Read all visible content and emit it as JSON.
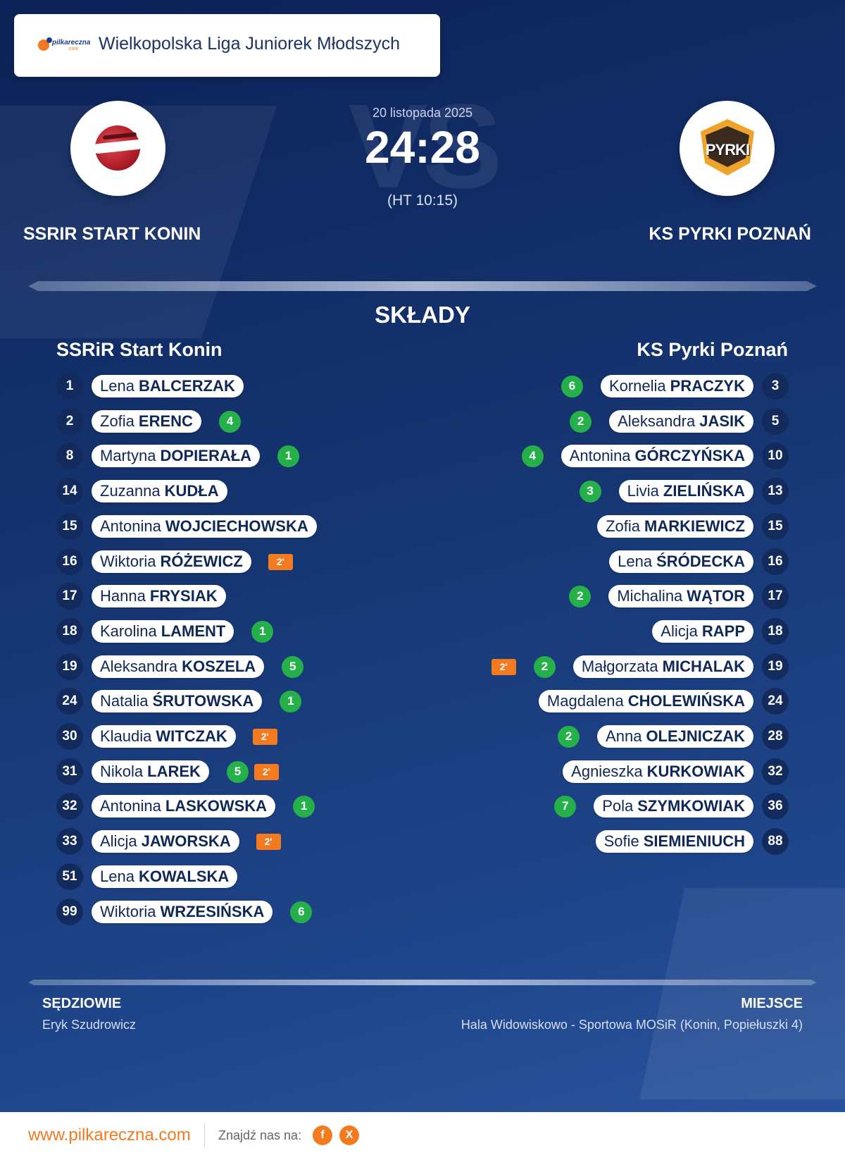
{
  "header": {
    "league": "Wielkopolska Liga Juniorek Młodszych",
    "logo_text": "pilkareczna",
    "logo_subtext": ".com"
  },
  "match": {
    "date": "20 listopada 2025",
    "score": "24:28",
    "halftime": "(HT 10:15)",
    "vs": "VS"
  },
  "home": {
    "name": "SSRIR START KONIN",
    "lineup_title": "SSRiR Start Konin",
    "players": [
      {
        "number": "1",
        "first": "Lena",
        "last": "BALCERZAK",
        "goals": "",
        "suspension": ""
      },
      {
        "number": "2",
        "first": "Zofia",
        "last": "ERENC",
        "goals": "4",
        "suspension": ""
      },
      {
        "number": "8",
        "first": "Martyna",
        "last": "DOPIERAŁA",
        "goals": "1",
        "suspension": ""
      },
      {
        "number": "14",
        "first": "Zuzanna",
        "last": "KUDŁA",
        "goals": "",
        "suspension": ""
      },
      {
        "number": "15",
        "first": "Antonina",
        "last": "WOJCIECHOWSKA",
        "goals": "",
        "suspension": ""
      },
      {
        "number": "16",
        "first": "Wiktoria",
        "last": "RÓŻEWICZ",
        "goals": "",
        "suspension": "2'"
      },
      {
        "number": "17",
        "first": "Hanna",
        "last": "FRYSIAK",
        "goals": "",
        "suspension": ""
      },
      {
        "number": "18",
        "first": "Karolina",
        "last": "LAMENT",
        "goals": "1",
        "suspension": ""
      },
      {
        "number": "19",
        "first": "Aleksandra",
        "last": "KOSZELA",
        "goals": "5",
        "suspension": ""
      },
      {
        "number": "24",
        "first": "Natalia",
        "last": "ŚRUTOWSKA",
        "goals": "1",
        "suspension": ""
      },
      {
        "number": "30",
        "first": "Klaudia",
        "last": "WITCZAK",
        "goals": "",
        "suspension": "2'"
      },
      {
        "number": "31",
        "first": "Nikola",
        "last": "LAREK",
        "goals": "5",
        "suspension": "2'"
      },
      {
        "number": "32",
        "first": "Antonina",
        "last": "LASKOWSKA",
        "goals": "1",
        "suspension": ""
      },
      {
        "number": "33",
        "first": "Alicja",
        "last": "JAWORSKA",
        "goals": "",
        "suspension": "2'"
      },
      {
        "number": "51",
        "first": "Lena",
        "last": "KOWALSKA",
        "goals": "",
        "suspension": ""
      },
      {
        "number": "99",
        "first": "Wiktoria",
        "last": "WRZESIŃSKA",
        "goals": "6",
        "suspension": ""
      }
    ]
  },
  "away": {
    "name": "KS PYRKI POZNAŃ",
    "lineup_title": "KS Pyrki Poznań",
    "crest_text": "PYRKI",
    "players": [
      {
        "number": "3",
        "first": "Kornelia",
        "last": "PRACZYK",
        "goals": "6",
        "suspension": ""
      },
      {
        "number": "5",
        "first": "Aleksandra",
        "last": "JASIK",
        "goals": "2",
        "suspension": ""
      },
      {
        "number": "10",
        "first": "Antonina",
        "last": "GÓRCZYŃSKA",
        "goals": "4",
        "suspension": ""
      },
      {
        "number": "13",
        "first": "Livia",
        "last": "ZIELIŃSKA",
        "goals": "3",
        "suspension": ""
      },
      {
        "number": "15",
        "first": "Zofia",
        "last": "MARKIEWICZ",
        "goals": "",
        "suspension": ""
      },
      {
        "number": "16",
        "first": "Lena",
        "last": "ŚRÓDECKA",
        "goals": "",
        "suspension": ""
      },
      {
        "number": "17",
        "first": "Michalina",
        "last": "WĄTOR",
        "goals": "2",
        "suspension": ""
      },
      {
        "number": "18",
        "first": "Alicja",
        "last": "RAPP",
        "goals": "",
        "suspension": ""
      },
      {
        "number": "19",
        "first": "Małgorzata",
        "last": "MICHALAK",
        "goals": "2",
        "suspension": "2'"
      },
      {
        "number": "24",
        "first": "Magdalena",
        "last": "CHOLEWIŃSKA",
        "goals": "",
        "suspension": ""
      },
      {
        "number": "28",
        "first": "Anna",
        "last": "OLEJNICZAK",
        "goals": "2",
        "suspension": ""
      },
      {
        "number": "32",
        "first": "Agnieszka",
        "last": "KURKOWIAK",
        "goals": "",
        "suspension": ""
      },
      {
        "number": "36",
        "first": "Pola",
        "last": "SZYMKOWIAK",
        "goals": "7",
        "suspension": ""
      },
      {
        "number": "88",
        "first": "Sofie",
        "last": "SIEMIENIUCH",
        "goals": "",
        "suspension": ""
      }
    ]
  },
  "section_title": "SKŁADY",
  "referees": {
    "label": "SĘDZIOWIE",
    "value": "Eryk Szudrowicz"
  },
  "venue": {
    "label": "MIEJSCE",
    "value": "Hala Widowiskowo - Sportowa MOSiR (Konin, Popiełuszki 4)"
  },
  "footer": {
    "site": "www.pilkareczna.com",
    "find_us": "Znajdź nas na:",
    "facebook": "f",
    "x": "X"
  },
  "colors": {
    "accent": "#f47a20",
    "goal_badge": "#25b04a",
    "navy": "#132a5c"
  }
}
